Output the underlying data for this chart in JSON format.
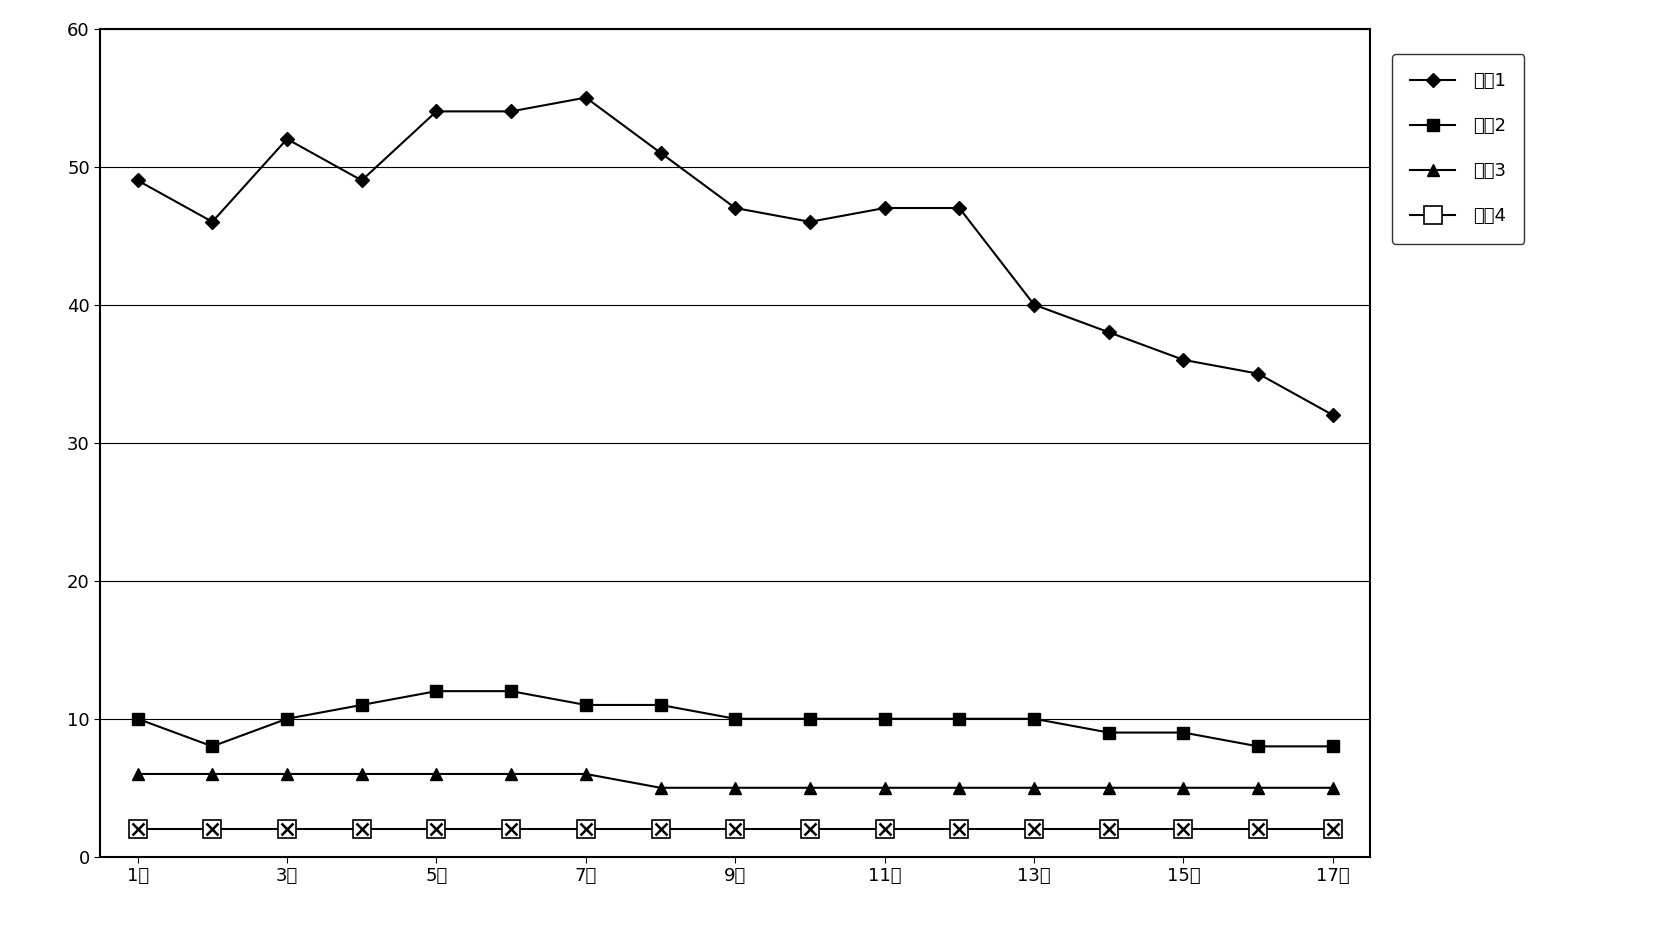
{
  "x_labels": [
    "1月",
    "3月",
    "5月",
    "7月",
    "9月",
    "11月",
    "13月",
    "15月",
    "17月"
  ],
  "x_tick_positions": [
    1,
    3,
    5,
    7,
    9,
    11,
    13,
    15,
    17
  ],
  "series1": {
    "name": "系列1",
    "y": [
      49,
      46,
      52,
      49,
      54,
      54,
      55,
      51,
      47,
      46,
      47,
      47,
      40,
      38,
      36,
      35,
      32
    ],
    "x": [
      1,
      2,
      3,
      4,
      5,
      6,
      7,
      8,
      9,
      10,
      11,
      12,
      13,
      14,
      15,
      16,
      17
    ]
  },
  "series2": {
    "name": "系列2",
    "y": [
      10,
      8,
      10,
      11,
      12,
      12,
      11,
      11,
      10,
      10,
      10,
      10,
      10,
      9,
      9,
      8,
      8
    ],
    "x": [
      1,
      2,
      3,
      4,
      5,
      6,
      7,
      8,
      9,
      10,
      11,
      12,
      13,
      14,
      15,
      16,
      17
    ]
  },
  "series3": {
    "name": "系列3",
    "y": [
      6,
      6,
      6,
      6,
      6,
      6,
      6,
      5,
      5,
      5,
      5,
      5,
      5,
      5,
      5,
      5,
      5
    ],
    "x": [
      1,
      2,
      3,
      4,
      5,
      6,
      7,
      8,
      9,
      10,
      11,
      12,
      13,
      14,
      15,
      16,
      17
    ]
  },
  "series4": {
    "name": "系列4",
    "y": [
      2,
      2,
      2,
      2,
      2,
      2,
      2,
      2,
      2,
      2,
      2,
      2,
      2,
      2,
      2,
      2,
      2
    ],
    "x": [
      1,
      2,
      3,
      4,
      5,
      6,
      7,
      8,
      9,
      10,
      11,
      12,
      13,
      14,
      15,
      16,
      17
    ]
  },
  "ylim": [
    0,
    60
  ],
  "xlim": [
    0.5,
    17.5
  ],
  "yticks": [
    0,
    10,
    20,
    30,
    40,
    50,
    60
  ],
  "background_color": "#ffffff",
  "line_color": "#000000",
  "tick_fontsize": 13,
  "legend_fontsize": 13
}
